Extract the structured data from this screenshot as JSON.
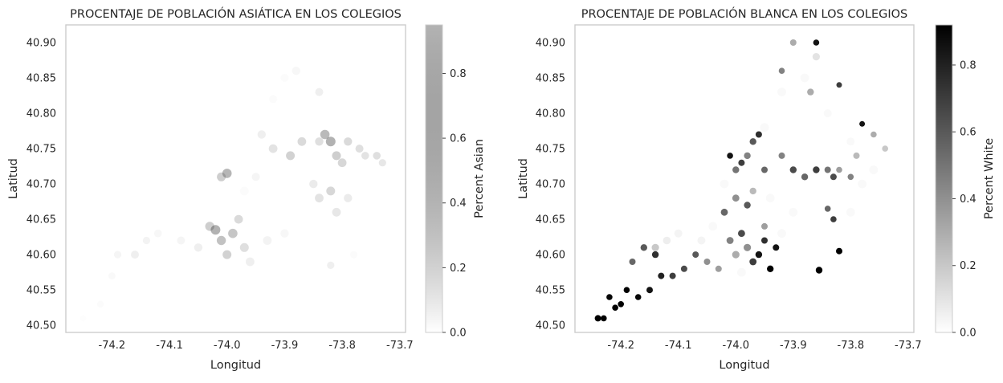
{
  "chart_data": [
    {
      "type": "scatter",
      "title": "PROCENTAJE DE POBLACIÓN ASIÁTICA EN LOS COLEGIOS",
      "xlabel": "Longitud",
      "ylabel": "Latitud",
      "xlim": [
        -74.28,
        -73.69
      ],
      "ylim": [
        40.49,
        40.925
      ],
      "xticks": [
        "-74.2",
        "-74.1",
        "-74.0",
        "-73.9",
        "-73.8",
        "-73.7"
      ],
      "yticks": [
        "40.50",
        "40.55",
        "40.60",
        "40.65",
        "40.70",
        "40.75",
        "40.80",
        "40.85",
        "40.90"
      ],
      "grid": false,
      "colorbar": {
        "label": "Percent Asian",
        "range": [
          0,
          0.95
        ],
        "ticks": [
          "0.0",
          "0.2",
          "0.4",
          "0.6",
          "0.8"
        ],
        "colormap": "greys-alpha",
        "alpha": 0.3
      },
      "point_alpha": 0.3,
      "color_scale": [
        "#ffffff",
        "#000000"
      ],
      "points": [
        {
          "x": -74.25,
          "y": 40.51,
          "value": 0.03,
          "size": 40
        },
        {
          "x": -74.22,
          "y": 40.53,
          "value": 0.05,
          "size": 50
        },
        {
          "x": -74.2,
          "y": 40.57,
          "value": 0.08,
          "size": 55
        },
        {
          "x": -74.19,
          "y": 40.6,
          "value": 0.12,
          "size": 60
        },
        {
          "x": -74.16,
          "y": 40.6,
          "value": 0.2,
          "size": 70
        },
        {
          "x": -74.14,
          "y": 40.62,
          "value": 0.15,
          "size": 60
        },
        {
          "x": -74.12,
          "y": 40.63,
          "value": 0.1,
          "size": 65
        },
        {
          "x": -74.08,
          "y": 40.62,
          "value": 0.12,
          "size": 70
        },
        {
          "x": -74.05,
          "y": 40.61,
          "value": 0.2,
          "size": 75
        },
        {
          "x": -74.03,
          "y": 40.64,
          "value": 0.6,
          "size": 90
        },
        {
          "x": -74.02,
          "y": 40.635,
          "value": 0.95,
          "size": 100
        },
        {
          "x": -74.01,
          "y": 40.62,
          "value": 0.75,
          "size": 90
        },
        {
          "x": -74.0,
          "y": 40.6,
          "value": 0.55,
          "size": 85
        },
        {
          "x": -73.99,
          "y": 40.63,
          "value": 0.7,
          "size": 95
        },
        {
          "x": -73.98,
          "y": 40.65,
          "value": 0.45,
          "size": 80
        },
        {
          "x": -73.97,
          "y": 40.61,
          "value": 0.4,
          "size": 85
        },
        {
          "x": -73.96,
          "y": 40.59,
          "value": 0.2,
          "size": 80
        },
        {
          "x": -73.93,
          "y": 40.62,
          "value": 0.15,
          "size": 80
        },
        {
          "x": -73.9,
          "y": 40.63,
          "value": 0.1,
          "size": 75
        },
        {
          "x": -73.97,
          "y": 40.69,
          "value": 0.05,
          "size": 80
        },
        {
          "x": -74.0,
          "y": 40.715,
          "value": 0.9,
          "size": 95
        },
        {
          "x": -74.01,
          "y": 40.71,
          "value": 0.6,
          "size": 85
        },
        {
          "x": -73.95,
          "y": 40.71,
          "value": 0.12,
          "size": 70
        },
        {
          "x": -73.94,
          "y": 40.77,
          "value": 0.2,
          "size": 75
        },
        {
          "x": -73.92,
          "y": 40.75,
          "value": 0.35,
          "size": 80
        },
        {
          "x": -73.89,
          "y": 40.74,
          "value": 0.55,
          "size": 85
        },
        {
          "x": -73.87,
          "y": 40.76,
          "value": 0.45,
          "size": 80
        },
        {
          "x": -73.84,
          "y": 40.76,
          "value": 0.4,
          "size": 75
        },
        {
          "x": -73.83,
          "y": 40.77,
          "value": 0.85,
          "size": 95
        },
        {
          "x": -73.82,
          "y": 40.76,
          "value": 0.95,
          "size": 100
        },
        {
          "x": -73.81,
          "y": 40.74,
          "value": 0.6,
          "size": 85
        },
        {
          "x": -73.8,
          "y": 40.73,
          "value": 0.5,
          "size": 80
        },
        {
          "x": -73.79,
          "y": 40.76,
          "value": 0.45,
          "size": 75
        },
        {
          "x": -73.77,
          "y": 40.75,
          "value": 0.4,
          "size": 70
        },
        {
          "x": -73.76,
          "y": 40.74,
          "value": 0.35,
          "size": 65
        },
        {
          "x": -73.74,
          "y": 40.74,
          "value": 0.4,
          "size": 65
        },
        {
          "x": -73.73,
          "y": 40.73,
          "value": 0.3,
          "size": 60
        },
        {
          "x": -73.85,
          "y": 40.7,
          "value": 0.25,
          "size": 75
        },
        {
          "x": -73.84,
          "y": 40.68,
          "value": 0.35,
          "size": 80
        },
        {
          "x": -73.82,
          "y": 40.69,
          "value": 0.5,
          "size": 85
        },
        {
          "x": -73.81,
          "y": 40.66,
          "value": 0.3,
          "size": 80
        },
        {
          "x": -73.79,
          "y": 40.68,
          "value": 0.25,
          "size": 75
        },
        {
          "x": -73.84,
          "y": 40.83,
          "value": 0.2,
          "size": 70
        },
        {
          "x": -73.88,
          "y": 40.86,
          "value": 0.1,
          "size": 75
        },
        {
          "x": -73.9,
          "y": 40.85,
          "value": 0.05,
          "size": 70
        },
        {
          "x": -73.92,
          "y": 40.82,
          "value": 0.05,
          "size": 70
        },
        {
          "x": -73.82,
          "y": 40.585,
          "value": 0.2,
          "size": 60
        },
        {
          "x": -73.78,
          "y": 40.6,
          "value": 0.05,
          "size": 60
        }
      ]
    },
    {
      "type": "scatter",
      "title": "PROCENTAJE DE POBLACIÓN BLANCA EN LOS COLEGIOS",
      "xlabel": "Longitud",
      "ylabel": "Latitud",
      "xlim": [
        -74.28,
        -73.69
      ],
      "ylim": [
        40.49,
        40.925
      ],
      "xticks": [
        "-74.2",
        "-74.1",
        "-74.0",
        "-73.9",
        "-73.8",
        "-73.7"
      ],
      "yticks": [
        "40.50",
        "40.55",
        "40.60",
        "40.65",
        "40.70",
        "40.75",
        "40.80",
        "40.85",
        "40.90"
      ],
      "grid": false,
      "colorbar": {
        "label": "Percent White",
        "range": [
          0,
          0.92
        ],
        "ticks": [
          "0.0",
          "0.2",
          "0.4",
          "0.6",
          "0.8"
        ],
        "colormap": "greys",
        "alpha": 1
      },
      "point_alpha": 1,
      "color_scale": [
        "#ffffff",
        "#000000"
      ],
      "points": [
        {
          "x": -73.8,
          "y": 40.66,
          "value": 0.02,
          "size": 80
        },
        {
          "x": -73.78,
          "y": 40.7,
          "value": 0.02,
          "size": 80
        },
        {
          "x": -73.76,
          "y": 40.72,
          "value": 0.02,
          "size": 80
        },
        {
          "x": -73.92,
          "y": 40.83,
          "value": 0.02,
          "size": 80
        },
        {
          "x": -73.88,
          "y": 40.85,
          "value": 0.02,
          "size": 80
        },
        {
          "x": -73.95,
          "y": 40.78,
          "value": 0.02,
          "size": 80
        },
        {
          "x": -73.92,
          "y": 40.63,
          "value": 0.02,
          "size": 80
        },
        {
          "x": -73.9,
          "y": 40.66,
          "value": 0.02,
          "size": 80
        },
        {
          "x": -73.94,
          "y": 40.68,
          "value": 0.02,
          "size": 80
        },
        {
          "x": -74.02,
          "y": 40.7,
          "value": 0.02,
          "size": 80
        },
        {
          "x": -74.04,
          "y": 40.64,
          "value": 0.02,
          "size": 80
        },
        {
          "x": -73.99,
          "y": 40.575,
          "value": 0.02,
          "size": 80
        },
        {
          "x": -74.1,
          "y": 40.63,
          "value": 0.04,
          "size": 70
        },
        {
          "x": -74.12,
          "y": 40.62,
          "value": 0.06,
          "size": 65
        },
        {
          "x": -74.06,
          "y": 40.62,
          "value": 0.04,
          "size": 70
        },
        {
          "x": -74.14,
          "y": 40.61,
          "value": 0.2,
          "size": 60
        },
        {
          "x": -73.84,
          "y": 40.8,
          "value": 0.02,
          "size": 70
        },
        {
          "x": -73.8,
          "y": 40.76,
          "value": 0.02,
          "size": 70
        },
        {
          "x": -73.86,
          "y": 40.88,
          "value": 0.1,
          "size": 60
        },
        {
          "x": -73.9,
          "y": 40.9,
          "value": 0.3,
          "size": 45
        },
        {
          "x": -73.86,
          "y": 40.9,
          "value": 0.85,
          "size": 40
        },
        {
          "x": -73.82,
          "y": 40.84,
          "value": 0.7,
          "size": 35
        },
        {
          "x": -73.92,
          "y": 40.86,
          "value": 0.45,
          "size": 40
        },
        {
          "x": -73.87,
          "y": 40.83,
          "value": 0.3,
          "size": 50
        },
        {
          "x": -73.96,
          "y": 40.77,
          "value": 0.75,
          "size": 45
        },
        {
          "x": -73.97,
          "y": 40.76,
          "value": 0.6,
          "size": 50
        },
        {
          "x": -73.98,
          "y": 40.74,
          "value": 0.45,
          "size": 50
        },
        {
          "x": -74.0,
          "y": 40.72,
          "value": 0.5,
          "size": 50
        },
        {
          "x": -73.99,
          "y": 40.73,
          "value": 0.7,
          "size": 45
        },
        {
          "x": -74.01,
          "y": 40.74,
          "value": 0.85,
          "size": 40
        },
        {
          "x": -73.95,
          "y": 40.72,
          "value": 0.55,
          "size": 45
        },
        {
          "x": -73.9,
          "y": 40.72,
          "value": 0.65,
          "size": 50
        },
        {
          "x": -73.88,
          "y": 40.71,
          "value": 0.55,
          "size": 50
        },
        {
          "x": -73.86,
          "y": 40.72,
          "value": 0.7,
          "size": 50
        },
        {
          "x": -73.84,
          "y": 40.72,
          "value": 0.5,
          "size": 45
        },
        {
          "x": -73.83,
          "y": 40.71,
          "value": 0.65,
          "size": 45
        },
        {
          "x": -73.82,
          "y": 40.72,
          "value": 0.35,
          "size": 40
        },
        {
          "x": -73.8,
          "y": 40.71,
          "value": 0.45,
          "size": 40
        },
        {
          "x": -73.79,
          "y": 40.74,
          "value": 0.25,
          "size": 45
        },
        {
          "x": -73.78,
          "y": 40.785,
          "value": 0.85,
          "size": 35
        },
        {
          "x": -73.76,
          "y": 40.77,
          "value": 0.3,
          "size": 40
        },
        {
          "x": -73.74,
          "y": 40.75,
          "value": 0.2,
          "size": 40
        },
        {
          "x": -73.84,
          "y": 40.665,
          "value": 0.55,
          "size": 40
        },
        {
          "x": -73.83,
          "y": 40.65,
          "value": 0.7,
          "size": 40
        },
        {
          "x": -73.82,
          "y": 40.605,
          "value": 0.95,
          "size": 45
        },
        {
          "x": -73.855,
          "y": 40.578,
          "value": 1.0,
          "size": 50
        },
        {
          "x": -73.94,
          "y": 40.58,
          "value": 1.0,
          "size": 50
        },
        {
          "x": -73.96,
          "y": 40.6,
          "value": 0.85,
          "size": 50
        },
        {
          "x": -73.97,
          "y": 40.59,
          "value": 0.7,
          "size": 55
        },
        {
          "x": -73.98,
          "y": 40.61,
          "value": 0.4,
          "size": 60
        },
        {
          "x": -74.0,
          "y": 40.6,
          "value": 0.3,
          "size": 60
        },
        {
          "x": -74.01,
          "y": 40.62,
          "value": 0.45,
          "size": 55
        },
        {
          "x": -73.99,
          "y": 40.63,
          "value": 0.65,
          "size": 55
        },
        {
          "x": -73.95,
          "y": 40.62,
          "value": 0.75,
          "size": 45
        },
        {
          "x": -73.93,
          "y": 40.61,
          "value": 0.85,
          "size": 45
        },
        {
          "x": -74.02,
          "y": 40.66,
          "value": 0.55,
          "size": 55
        },
        {
          "x": -74.0,
          "y": 40.68,
          "value": 0.4,
          "size": 55
        },
        {
          "x": -73.98,
          "y": 40.67,
          "value": 0.6,
          "size": 50
        },
        {
          "x": -74.03,
          "y": 40.58,
          "value": 0.35,
          "size": 45
        },
        {
          "x": -74.09,
          "y": 40.58,
          "value": 0.65,
          "size": 45
        },
        {
          "x": -74.11,
          "y": 40.57,
          "value": 0.7,
          "size": 45
        },
        {
          "x": -74.13,
          "y": 40.57,
          "value": 0.8,
          "size": 45
        },
        {
          "x": -74.15,
          "y": 40.55,
          "value": 0.85,
          "size": 45
        },
        {
          "x": -74.17,
          "y": 40.54,
          "value": 0.9,
          "size": 40
        },
        {
          "x": -74.19,
          "y": 40.55,
          "value": 0.95,
          "size": 40
        },
        {
          "x": -74.2,
          "y": 40.53,
          "value": 0.95,
          "size": 40
        },
        {
          "x": -74.22,
          "y": 40.54,
          "value": 0.9,
          "size": 40
        },
        {
          "x": -74.24,
          "y": 40.51,
          "value": 1.0,
          "size": 45
        },
        {
          "x": -74.23,
          "y": 40.51,
          "value": 0.95,
          "size": 40
        },
        {
          "x": -74.21,
          "y": 40.525,
          "value": 1.0,
          "size": 40
        },
        {
          "x": -74.14,
          "y": 40.6,
          "value": 0.75,
          "size": 50
        },
        {
          "x": -74.16,
          "y": 40.61,
          "value": 0.6,
          "size": 50
        },
        {
          "x": -74.18,
          "y": 40.59,
          "value": 0.55,
          "size": 45
        },
        {
          "x": -74.07,
          "y": 40.6,
          "value": 0.6,
          "size": 45
        },
        {
          "x": -74.05,
          "y": 40.59,
          "value": 0.4,
          "size": 45
        },
        {
          "x": -73.95,
          "y": 40.64,
          "value": 0.35,
          "size": 45
        },
        {
          "x": -73.92,
          "y": 40.74,
          "value": 0.45,
          "size": 45
        },
        {
          "x": -73.97,
          "y": 40.69,
          "value": 0.25,
          "size": 50
        }
      ]
    }
  ]
}
